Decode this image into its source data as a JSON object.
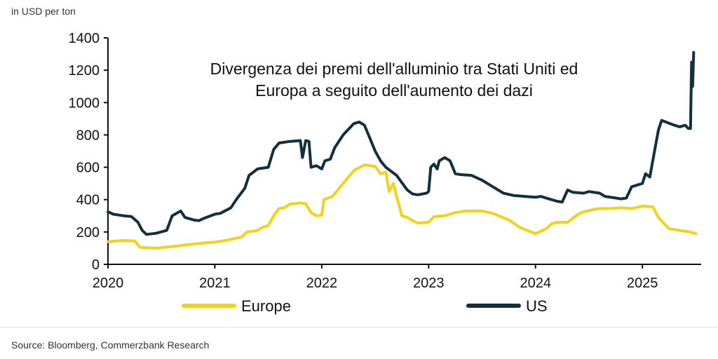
{
  "unit_label": "in USD per ton",
  "source": "Source: Bloomberg, Commerzbank Research",
  "chart_data": {
    "type": "line",
    "title": "Divergenza dei premi dell'alluminio tra Stati Uniti ed Europa a seguito dell'aumento dei dazi",
    "title_lines": [
      "Divergenza dei premi dell'alluminio tra Stati Uniti ed",
      "Europa a seguito dell'aumento dei dazi"
    ],
    "xlabel": "",
    "ylabel": "",
    "xlim": [
      2020,
      2025.55
    ],
    "ylim": [
      0,
      1400
    ],
    "x_ticks": [
      2020,
      2021,
      2022,
      2023,
      2024,
      2025
    ],
    "y_ticks": [
      0,
      200,
      400,
      600,
      800,
      1000,
      1200,
      1400
    ],
    "grid": false,
    "legend_position": "bottom",
    "series": [
      {
        "name": "Europe",
        "color": "#f2d21b",
        "points": [
          [
            2020.0,
            140
          ],
          [
            2020.15,
            148
          ],
          [
            2020.25,
            145
          ],
          [
            2020.3,
            105
          ],
          [
            2020.45,
            100
          ],
          [
            2020.6,
            110
          ],
          [
            2020.75,
            122
          ],
          [
            2020.9,
            132
          ],
          [
            2021.0,
            138
          ],
          [
            2021.1,
            148
          ],
          [
            2021.25,
            168
          ],
          [
            2021.3,
            200
          ],
          [
            2021.4,
            210
          ],
          [
            2021.45,
            230
          ],
          [
            2021.5,
            240
          ],
          [
            2021.55,
            300
          ],
          [
            2021.6,
            345
          ],
          [
            2021.65,
            350
          ],
          [
            2021.7,
            372
          ],
          [
            2021.8,
            380
          ],
          [
            2021.85,
            375
          ],
          [
            2021.9,
            320
          ],
          [
            2021.95,
            300
          ],
          [
            2022.0,
            305
          ],
          [
            2022.02,
            400
          ],
          [
            2022.1,
            420
          ],
          [
            2022.2,
            500
          ],
          [
            2022.3,
            580
          ],
          [
            2022.4,
            615
          ],
          [
            2022.5,
            605
          ],
          [
            2022.55,
            560
          ],
          [
            2022.6,
            570
          ],
          [
            2022.63,
            450
          ],
          [
            2022.67,
            500
          ],
          [
            2022.7,
            420
          ],
          [
            2022.75,
            300
          ],
          [
            2022.8,
            290
          ],
          [
            2022.85,
            270
          ],
          [
            2022.9,
            255
          ],
          [
            2023.0,
            260
          ],
          [
            2023.05,
            295
          ],
          [
            2023.15,
            300
          ],
          [
            2023.25,
            320
          ],
          [
            2023.35,
            330
          ],
          [
            2023.5,
            330
          ],
          [
            2023.6,
            315
          ],
          [
            2023.75,
            275
          ],
          [
            2023.85,
            230
          ],
          [
            2023.9,
            215
          ],
          [
            2024.0,
            190
          ],
          [
            2024.1,
            220
          ],
          [
            2024.15,
            250
          ],
          [
            2024.2,
            260
          ],
          [
            2024.3,
            260
          ],
          [
            2024.4,
            310
          ],
          [
            2024.45,
            325
          ],
          [
            2024.55,
            340
          ],
          [
            2024.6,
            345
          ],
          [
            2024.7,
            345
          ],
          [
            2024.8,
            350
          ],
          [
            2024.9,
            345
          ],
          [
            2025.0,
            360
          ],
          [
            2025.1,
            355
          ],
          [
            2025.15,
            290
          ],
          [
            2025.2,
            255
          ],
          [
            2025.25,
            220
          ],
          [
            2025.35,
            210
          ],
          [
            2025.45,
            200
          ],
          [
            2025.5,
            190
          ]
        ]
      },
      {
        "name": "US",
        "color": "#12303f",
        "points": [
          [
            2020.0,
            325
          ],
          [
            2020.05,
            310
          ],
          [
            2020.15,
            300
          ],
          [
            2020.22,
            295
          ],
          [
            2020.28,
            260
          ],
          [
            2020.32,
            210
          ],
          [
            2020.36,
            185
          ],
          [
            2020.45,
            192
          ],
          [
            2020.55,
            210
          ],
          [
            2020.6,
            300
          ],
          [
            2020.68,
            330
          ],
          [
            2020.72,
            290
          ],
          [
            2020.8,
            275
          ],
          [
            2020.85,
            270
          ],
          [
            2020.9,
            285
          ],
          [
            2021.0,
            310
          ],
          [
            2021.05,
            315
          ],
          [
            2021.15,
            350
          ],
          [
            2021.2,
            400
          ],
          [
            2021.28,
            470
          ],
          [
            2021.32,
            550
          ],
          [
            2021.4,
            590
          ],
          [
            2021.5,
            600
          ],
          [
            2021.55,
            710
          ],
          [
            2021.6,
            750
          ],
          [
            2021.7,
            760
          ],
          [
            2021.8,
            765
          ],
          [
            2021.82,
            660
          ],
          [
            2021.85,
            765
          ],
          [
            2021.88,
            760
          ],
          [
            2021.9,
            600
          ],
          [
            2021.95,
            610
          ],
          [
            2022.0,
            590
          ],
          [
            2022.03,
            640
          ],
          [
            2022.08,
            650
          ],
          [
            2022.12,
            720
          ],
          [
            2022.2,
            800
          ],
          [
            2022.3,
            870
          ],
          [
            2022.35,
            880
          ],
          [
            2022.4,
            860
          ],
          [
            2022.45,
            780
          ],
          [
            2022.5,
            700
          ],
          [
            2022.55,
            640
          ],
          [
            2022.6,
            600
          ],
          [
            2022.7,
            550
          ],
          [
            2022.8,
            460
          ],
          [
            2022.85,
            435
          ],
          [
            2022.9,
            430
          ],
          [
            2022.98,
            440
          ],
          [
            2023.0,
            450
          ],
          [
            2023.02,
            600
          ],
          [
            2023.05,
            620
          ],
          [
            2023.08,
            590
          ],
          [
            2023.1,
            640
          ],
          [
            2023.15,
            660
          ],
          [
            2023.2,
            640
          ],
          [
            2023.25,
            560
          ],
          [
            2023.3,
            555
          ],
          [
            2023.4,
            550
          ],
          [
            2023.5,
            520
          ],
          [
            2023.6,
            480
          ],
          [
            2023.7,
            440
          ],
          [
            2023.8,
            425
          ],
          [
            2023.9,
            420
          ],
          [
            2024.0,
            415
          ],
          [
            2024.05,
            420
          ],
          [
            2024.1,
            410
          ],
          [
            2024.2,
            390
          ],
          [
            2024.25,
            385
          ],
          [
            2024.3,
            460
          ],
          [
            2024.35,
            445
          ],
          [
            2024.45,
            440
          ],
          [
            2024.5,
            450
          ],
          [
            2024.6,
            440
          ],
          [
            2024.65,
            420
          ],
          [
            2024.75,
            410
          ],
          [
            2024.8,
            405
          ],
          [
            2024.85,
            410
          ],
          [
            2024.9,
            480
          ],
          [
            2025.0,
            500
          ],
          [
            2025.03,
            560
          ],
          [
            2025.07,
            540
          ],
          [
            2025.1,
            650
          ],
          [
            2025.15,
            830
          ],
          [
            2025.18,
            890
          ],
          [
            2025.22,
            880
          ],
          [
            2025.3,
            860
          ],
          [
            2025.35,
            850
          ],
          [
            2025.4,
            860
          ],
          [
            2025.43,
            840
          ],
          [
            2025.45,
            840
          ],
          [
            2025.46,
            1250
          ],
          [
            2025.47,
            1100
          ],
          [
            2025.48,
            1310
          ]
        ]
      }
    ]
  }
}
